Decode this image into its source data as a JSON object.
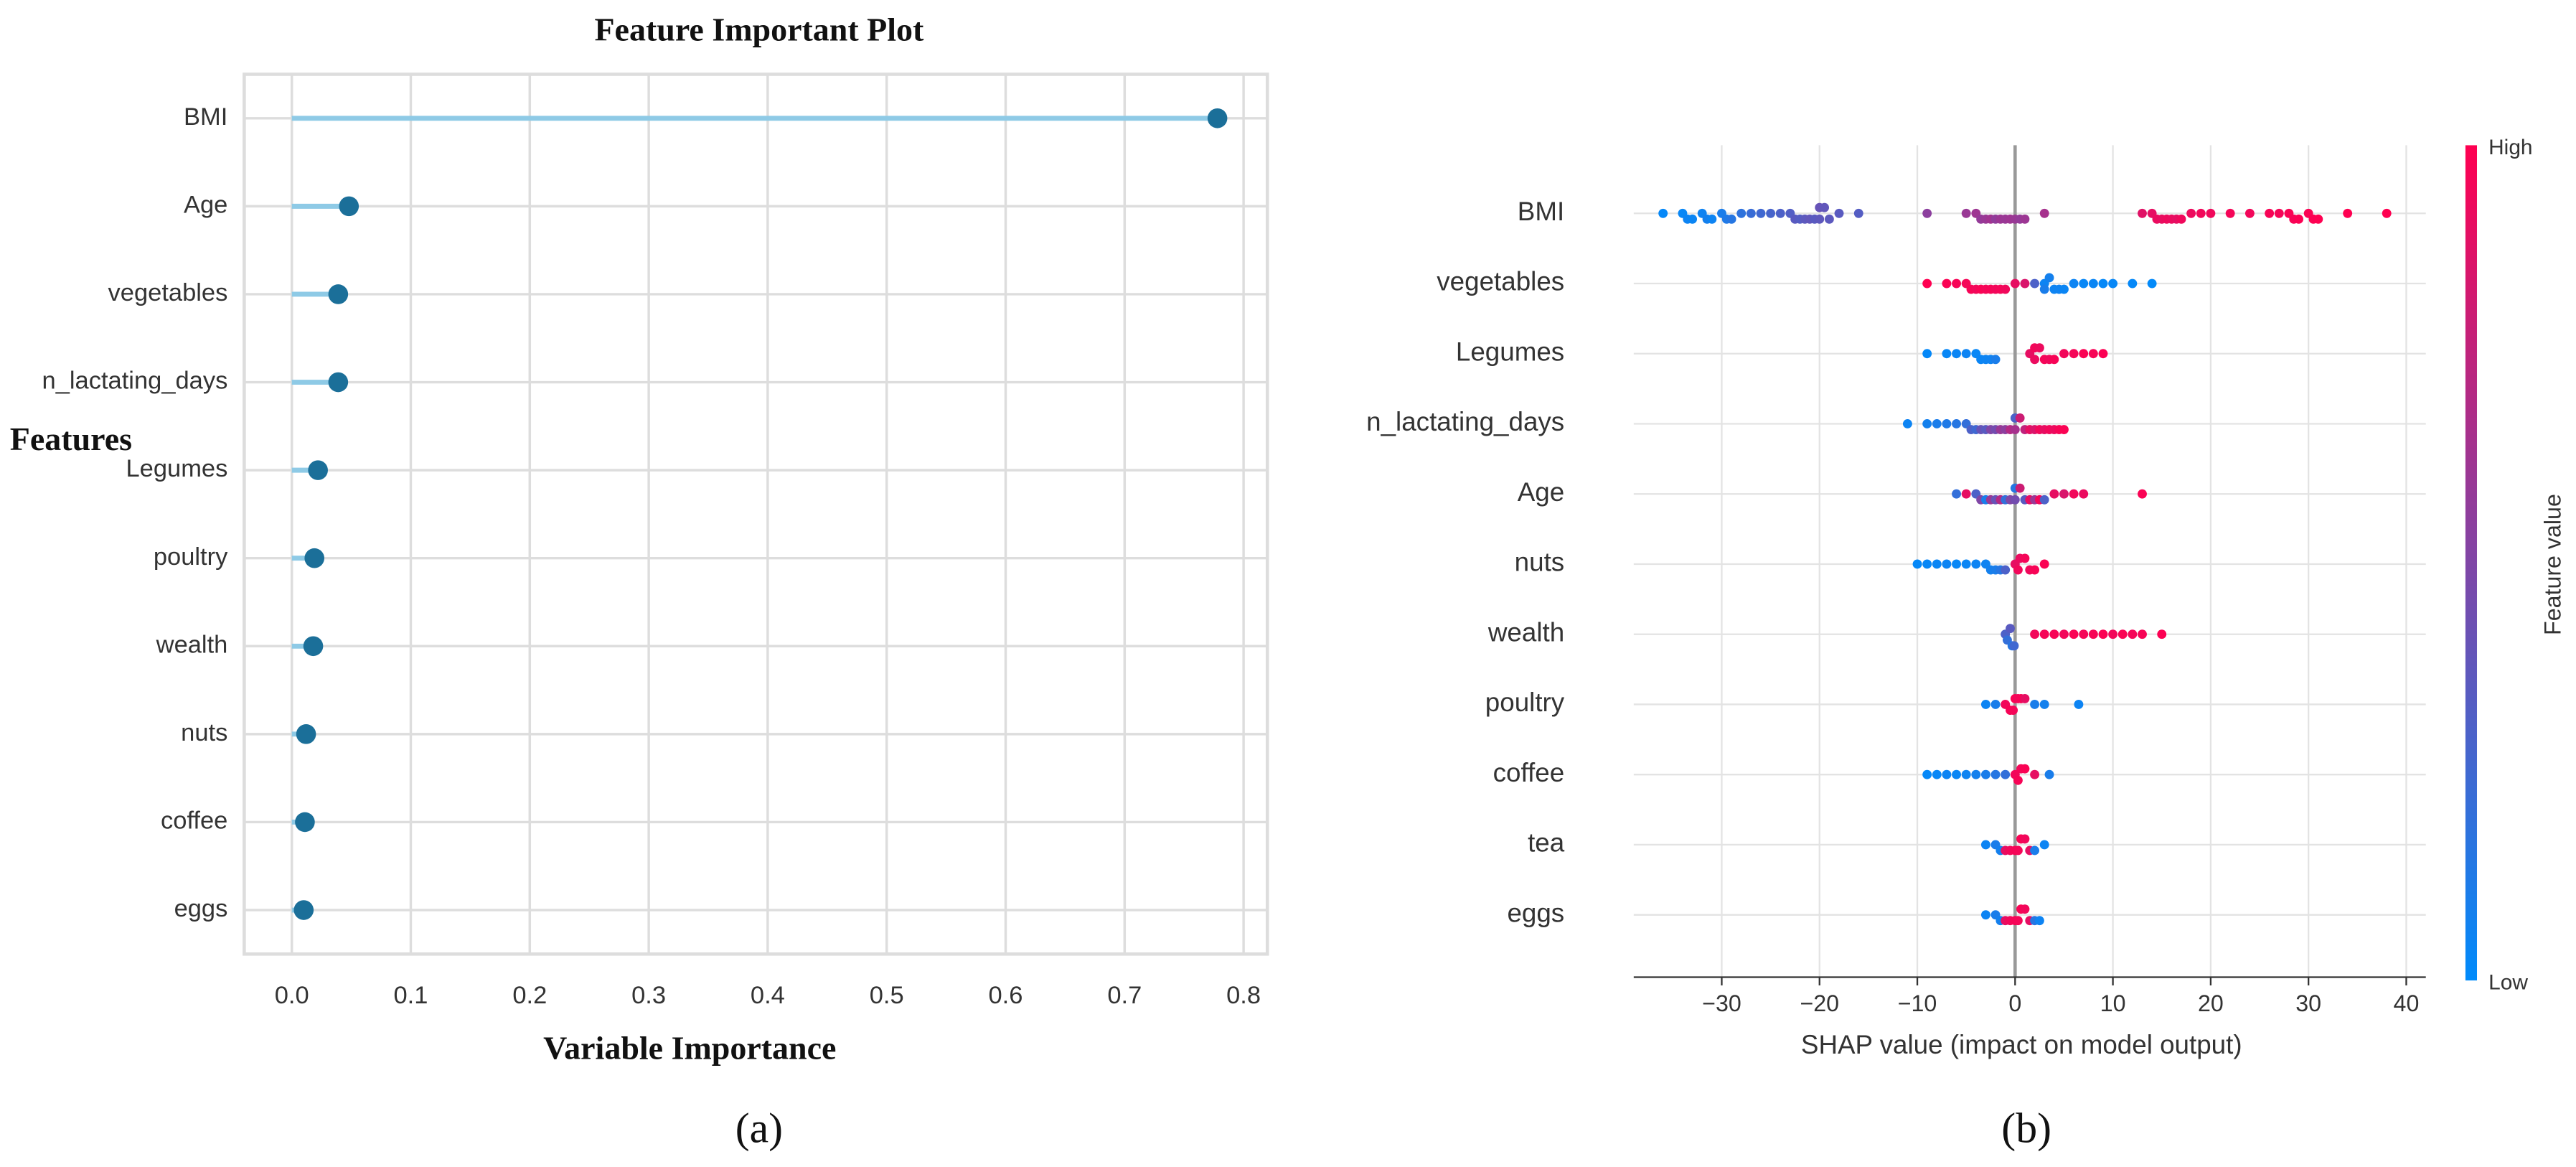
{
  "chart_data": [
    {
      "type": "lollipop",
      "caption": "(a)",
      "title": "Feature Important Plot",
      "ylabel": "Features",
      "xlabel": "Variable Importance",
      "categories": [
        "BMI",
        "Age",
        "vegetables",
        "n_lactating_days",
        "Legumes",
        "poultry",
        "wealth",
        "nuts",
        "coffee",
        "eggs"
      ],
      "values": [
        0.778,
        0.048,
        0.039,
        0.039,
        0.022,
        0.019,
        0.018,
        0.012,
        0.011,
        0.01
      ],
      "line_color": "#8ecae6",
      "color": "#1b6f99",
      "xlim": [
        -0.04,
        0.82
      ],
      "xticks": [
        {
          "value": 0,
          "label": "0.0"
        },
        0.1,
        0.2,
        0.3,
        0.4,
        0.5,
        0.6,
        0.7,
        0.8
      ],
      "grid": true
    },
    {
      "type": "beeswarm",
      "caption": "(b)",
      "xlabel": "SHAP value (impact on model output)",
      "categories": [
        "BMI",
        "vegetables",
        "Legumes",
        "n_lactating_days",
        "Age",
        "nuts",
        "wealth",
        "poultry",
        "coffee",
        "tea",
        "eggs"
      ],
      "shap_values": [
        [
          -36,
          -34,
          -33.5,
          -33,
          -32,
          -31.5,
          -31,
          -30,
          -29.5,
          -29,
          -28,
          -27,
          -26,
          -25,
          -24,
          -23,
          -22.5,
          -22,
          -21.5,
          -21,
          -20.5,
          -20,
          -20,
          -19.5,
          -19,
          -18,
          -16,
          -9,
          -5,
          -4,
          -3.5,
          -3,
          -2.5,
          -2,
          -1.5,
          -1,
          -0.5,
          0,
          0.5,
          1,
          3,
          13,
          14,
          14.5,
          15,
          15.5,
          16,
          16.5,
          17,
          18,
          19,
          20,
          22,
          24,
          26,
          27,
          28,
          28.5,
          29,
          30,
          30.5,
          31,
          34,
          38
        ],
        [
          -9,
          -7,
          -6,
          -5,
          -4.5,
          -4,
          -3.5,
          -3,
          -2.5,
          -2,
          -1.5,
          -1,
          0,
          1,
          2,
          3,
          3,
          3.5,
          4,
          4.5,
          5,
          6,
          7,
          8,
          9,
          10,
          12,
          14
        ],
        [
          -9,
          -7,
          -6,
          -5,
          -4,
          -3.5,
          -3,
          -2.5,
          -2,
          1.5,
          2,
          2,
          2.5,
          3,
          3.5,
          4,
          5,
          6,
          7,
          8,
          9
        ],
        [
          -11,
          -9,
          -8,
          -7,
          -6,
          -5,
          -4.5,
          -4,
          -3.5,
          -3,
          -2.5,
          -2,
          -1.5,
          -1,
          -0.5,
          0,
          0,
          0.5,
          1,
          1.5,
          2,
          2.5,
          3,
          3.5,
          4,
          4.5,
          5
        ],
        [
          -6,
          -5,
          -4,
          -3.5,
          -3,
          -2.5,
          -2,
          -1.5,
          -1,
          -0.5,
          0,
          0,
          0.5,
          1,
          1.5,
          2,
          2.5,
          3,
          4,
          5,
          6,
          7,
          13
        ],
        [
          -10,
          -9,
          -8,
          -7,
          -6,
          -5,
          -4,
          -3,
          -2.5,
          -2,
          -1.5,
          -1,
          0,
          0.3,
          0.5,
          1,
          1.5,
          2,
          3
        ],
        [
          -1,
          -0.8,
          -0.5,
          -0.3,
          -0.1,
          2,
          3,
          4,
          5,
          6,
          7,
          8,
          9,
          10,
          11,
          12,
          13,
          15
        ],
        [
          -3,
          -2,
          -1,
          -0.5,
          -0.2,
          0,
          0.3,
          0.6,
          1,
          2,
          3,
          6.5
        ],
        [
          -9,
          -8,
          -7,
          -6,
          -5,
          -4,
          -3,
          -2,
          -1,
          0,
          0.3,
          0.6,
          1,
          2,
          3.5
        ],
        [
          -3,
          -2,
          -1.5,
          -1,
          -0.5,
          0,
          0.3,
          0.6,
          1,
          1.5,
          2,
          3
        ],
        [
          -3,
          -2,
          -1.5,
          -1,
          -0.5,
          0,
          0.3,
          0.6,
          1,
          1.5,
          2,
          2.5
        ]
      ],
      "feature_values": [
        [
          0.02,
          0.03,
          0.05,
          0.04,
          0.06,
          0.08,
          0.05,
          0.1,
          0.12,
          0.15,
          0.18,
          0.22,
          0.25,
          0.28,
          0.3,
          0.32,
          0.35,
          0.33,
          0.36,
          0.38,
          0.35,
          0.37,
          0.4,
          0.38,
          0.36,
          0.35,
          0.33,
          0.55,
          0.6,
          0.62,
          0.58,
          0.6,
          0.63,
          0.57,
          0.61,
          0.6,
          0.62,
          0.6,
          0.58,
          0.61,
          0.65,
          0.88,
          0.9,
          0.92,
          0.91,
          0.93,
          0.92,
          0.9,
          0.94,
          0.93,
          0.95,
          0.94,
          0.96,
          0.95,
          0.97,
          0.96,
          0.98,
          0.97,
          0.99,
          0.98,
          0.99,
          1.0,
          1.0,
          1.0
        ],
        [
          1.0,
          0.98,
          0.97,
          0.96,
          0.97,
          0.95,
          0.98,
          0.96,
          0.97,
          0.95,
          0.96,
          0.94,
          0.9,
          0.85,
          0.3,
          0.05,
          0.1,
          0.08,
          0.05,
          0.06,
          0.04,
          0.05,
          0.03,
          0.04,
          0.02,
          0.03,
          0.02,
          0.01
        ],
        [
          0.02,
          0.03,
          0.04,
          0.05,
          0.03,
          0.04,
          0.05,
          0.06,
          0.1,
          0.9,
          0.92,
          0.95,
          0.93,
          0.96,
          0.94,
          0.97,
          0.95,
          0.96,
          0.98,
          0.97,
          0.99
        ],
        [
          0.05,
          0.08,
          0.1,
          0.12,
          0.15,
          0.2,
          0.3,
          0.25,
          0.4,
          0.35,
          0.5,
          0.45,
          0.6,
          0.55,
          0.7,
          0.65,
          0.3,
          0.8,
          0.75,
          0.9,
          0.85,
          0.95,
          0.9,
          0.95,
          0.92,
          0.97,
          0.98
        ],
        [
          0.2,
          0.9,
          0.3,
          0.5,
          0.1,
          0.6,
          0.4,
          0.7,
          0.2,
          0.5,
          0.45,
          0.15,
          0.8,
          0.35,
          0.9,
          0.6,
          0.95,
          0.3,
          0.9,
          0.85,
          0.95,
          0.92,
          0.98
        ],
        [
          0.02,
          0.03,
          0.04,
          0.05,
          0.03,
          0.04,
          0.05,
          0.06,
          0.08,
          0.1,
          0.15,
          0.3,
          0.9,
          0.95,
          0.92,
          0.96,
          0.94,
          0.97,
          0.98
        ],
        [
          0.3,
          0.2,
          0.35,
          0.15,
          0.25,
          0.95,
          0.96,
          0.97,
          0.95,
          0.98,
          0.96,
          0.97,
          0.99,
          0.95,
          0.98,
          0.96,
          0.97,
          0.99
        ],
        [
          0.05,
          0.1,
          0.95,
          0.97,
          0.96,
          0.98,
          0.95,
          0.97,
          0.9,
          0.1,
          0.08,
          0.05
        ],
        [
          0.02,
          0.03,
          0.05,
          0.04,
          0.06,
          0.08,
          0.1,
          0.15,
          0.2,
          0.95,
          0.97,
          0.96,
          0.98,
          0.9,
          0.1
        ],
        [
          0.05,
          0.1,
          0.08,
          0.9,
          0.95,
          0.97,
          0.96,
          0.98,
          0.95,
          0.9,
          0.1,
          0.05
        ],
        [
          0.05,
          0.1,
          0.08,
          0.9,
          0.95,
          0.97,
          0.96,
          0.98,
          0.95,
          0.9,
          0.15,
          0.05
        ]
      ],
      "low_color": "#008bfb",
      "high_color": "#ff0051",
      "colorbar": {
        "label": "Feature value",
        "high": "High",
        "low": "Low"
      },
      "xlim": [
        -39,
        42
      ],
      "xticks": [
        {
          "value": -30,
          "label": "−30"
        },
        {
          "value": -20,
          "label": "−20"
        },
        {
          "value": -10,
          "label": "−10"
        },
        0,
        10,
        20,
        30,
        40
      ],
      "grid": true
    }
  ]
}
